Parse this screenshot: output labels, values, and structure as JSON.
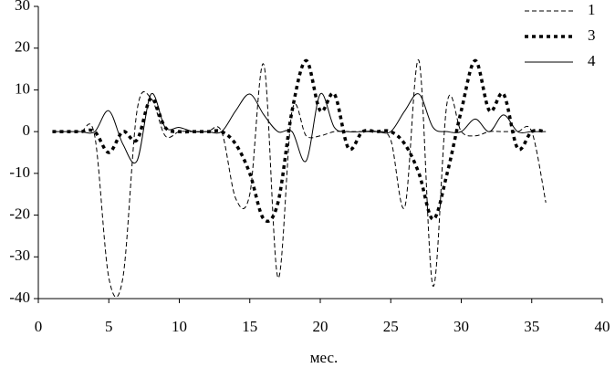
{
  "chart_data": {
    "type": "line",
    "x_label": "мес.",
    "x": [
      1,
      2,
      3,
      4,
      5,
      6,
      7,
      8,
      9,
      10,
      11,
      12,
      13,
      14,
      15,
      16,
      17,
      18,
      19,
      20,
      21,
      22,
      23,
      24,
      25,
      26,
      27,
      28,
      29,
      30,
      31,
      32,
      33,
      34,
      35,
      36
    ],
    "series": [
      {
        "name": "1",
        "color": "#000000",
        "dash": "5,3",
        "width": 1,
        "values": [
          0,
          0,
          0,
          -1,
          -35,
          -35,
          5,
          8,
          -1,
          0,
          0,
          0,
          0,
          -16,
          -15,
          16,
          -35,
          5,
          -1,
          -1,
          0,
          0,
          0,
          0,
          -2,
          -18,
          17,
          -37,
          7,
          0,
          -1,
          0,
          0,
          0,
          0,
          -17
        ]
      },
      {
        "name": "3",
        "color": "#000000",
        "dash": "4,4",
        "width": 3.5,
        "values": [
          0,
          0,
          0,
          0,
          -5,
          0,
          -2,
          8,
          1,
          0,
          0,
          0,
          0,
          -3,
          -10,
          -21,
          -17,
          5,
          17,
          5,
          9,
          -4,
          0,
          0,
          0,
          -3,
          -10,
          -21,
          -10,
          5,
          17,
          5,
          9,
          -4,
          0,
          0
        ]
      },
      {
        "name": "4",
        "color": "#000000",
        "dash": "none",
        "width": 1,
        "values": [
          0,
          0,
          0,
          0,
          5,
          -3,
          -7,
          9,
          1,
          1,
          0,
          0,
          0,
          5,
          9,
          4,
          0,
          0,
          -7,
          9,
          1,
          0,
          0,
          0,
          0,
          5,
          9,
          1,
          0,
          0,
          3,
          0,
          4,
          0,
          0,
          0
        ]
      }
    ],
    "xlim": [
      0,
      40
    ],
    "xticks": [
      0,
      5,
      10,
      15,
      20,
      25,
      30,
      35,
      40
    ],
    "ylim": [
      -40,
      30
    ],
    "yticks": [
      -40,
      -30,
      -20,
      -10,
      0,
      10,
      20,
      30
    ],
    "grid": false,
    "legend": "top-right"
  }
}
